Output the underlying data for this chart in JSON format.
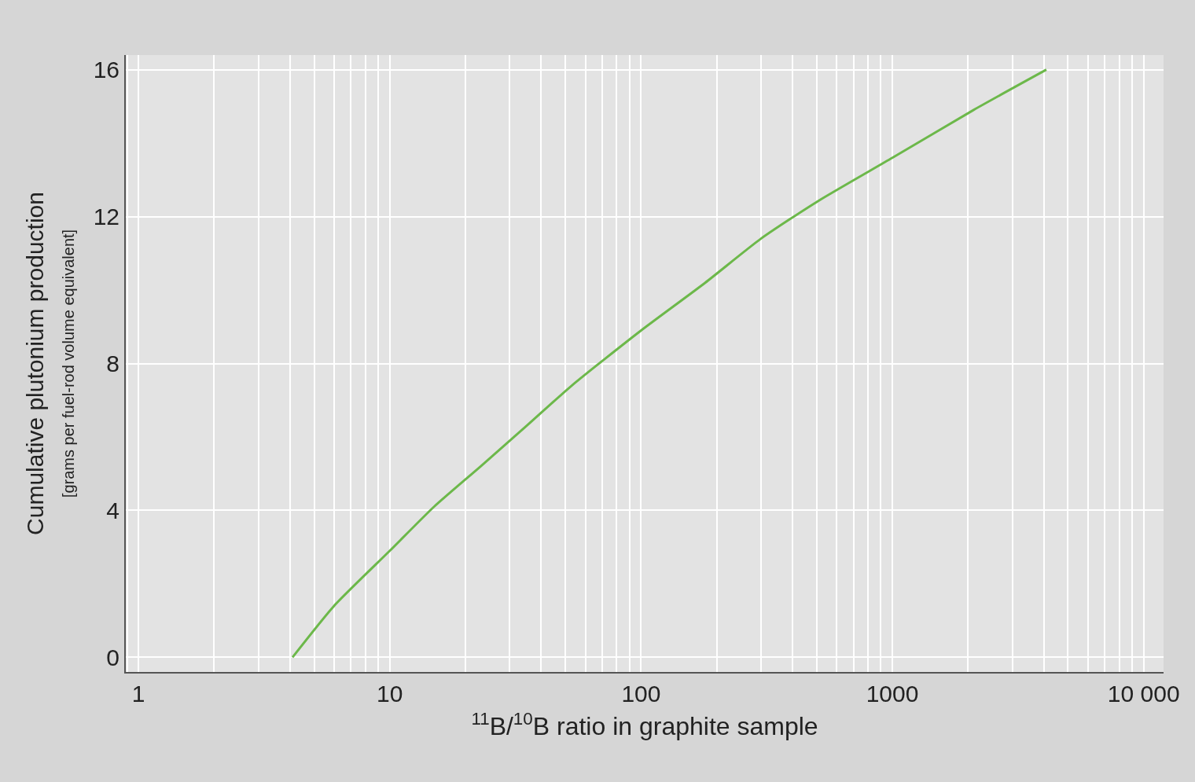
{
  "chart_data": {
    "type": "line",
    "xlabel": "$^{11}$B/$^{10}$B ratio in graphite sample",
    "ylabel": "Cumulative plutonium production",
    "subtitle": "[grams per fuel-rod volume equivalent]",
    "log": "x",
    "x": [
      4.1,
      6,
      10,
      15,
      23,
      35,
      53,
      100,
      180,
      300,
      500,
      1000,
      2100,
      4100
    ],
    "series": [
      {
        "color": "#6cb84a",
        "values": [
          0,
          1.4,
          2.9,
          4.1,
          5.2,
          6.3,
          7.4,
          8.9,
          10.2,
          11.4,
          12.4,
          13.6,
          14.9,
          16.0
        ]
      }
    ],
    "xlim": [
      0.89,
      12000
    ],
    "ylim": [
      -0.4,
      16.4
    ],
    "xticks": [
      1,
      10,
      100,
      1000,
      {
        "value": 10000,
        "label": "10 000"
      }
    ],
    "yticks": [
      0,
      4,
      8,
      12,
      16
    ],
    "grid": true,
    "legend": false,
    "marker": "none",
    "line_style": "solid"
  }
}
